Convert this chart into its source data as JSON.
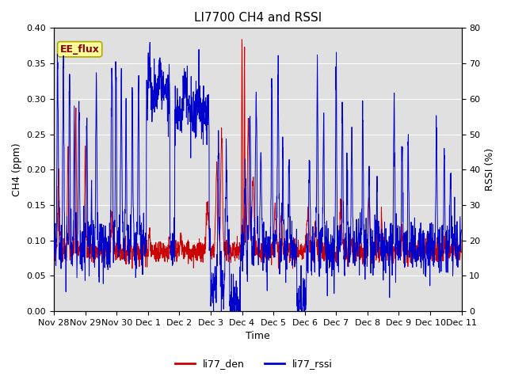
{
  "title": "LI7700 CH4 and RSSI",
  "xlabel": "Time",
  "ylabel_left": "CH4 (ppm)",
  "ylabel_right": "RSSI (%)",
  "legend_label1": "li77_den",
  "legend_label2": "li77_rssi",
  "annotation": "EE_flux",
  "ylim_left": [
    0.0,
    0.4
  ],
  "ylim_right": [
    0,
    80
  ],
  "yticks_left": [
    0.0,
    0.05,
    0.1,
    0.15,
    0.2,
    0.25,
    0.3,
    0.35,
    0.4
  ],
  "yticks_right": [
    0,
    10,
    20,
    30,
    40,
    50,
    60,
    70,
    80
  ],
  "x_tick_labels": [
    "Nov 28",
    "Nov 29",
    "Nov 30",
    "Dec 1",
    "Dec 2",
    "Dec 3",
    "Dec 4",
    "Dec 5",
    "Dec 6",
    "Dec 7",
    "Dec 8",
    "Dec 9",
    "Dec 10",
    "Dec 11"
  ],
  "color_ch4": "#cc0000",
  "color_rssi": "#0000cc",
  "bg_color": "#e0e0e0",
  "annotation_bg": "#ffff99",
  "annotation_border": "#aaaa00",
  "title_fontsize": 11,
  "label_fontsize": 9,
  "tick_fontsize": 8,
  "legend_fontsize": 9,
  "n_points": 2000
}
